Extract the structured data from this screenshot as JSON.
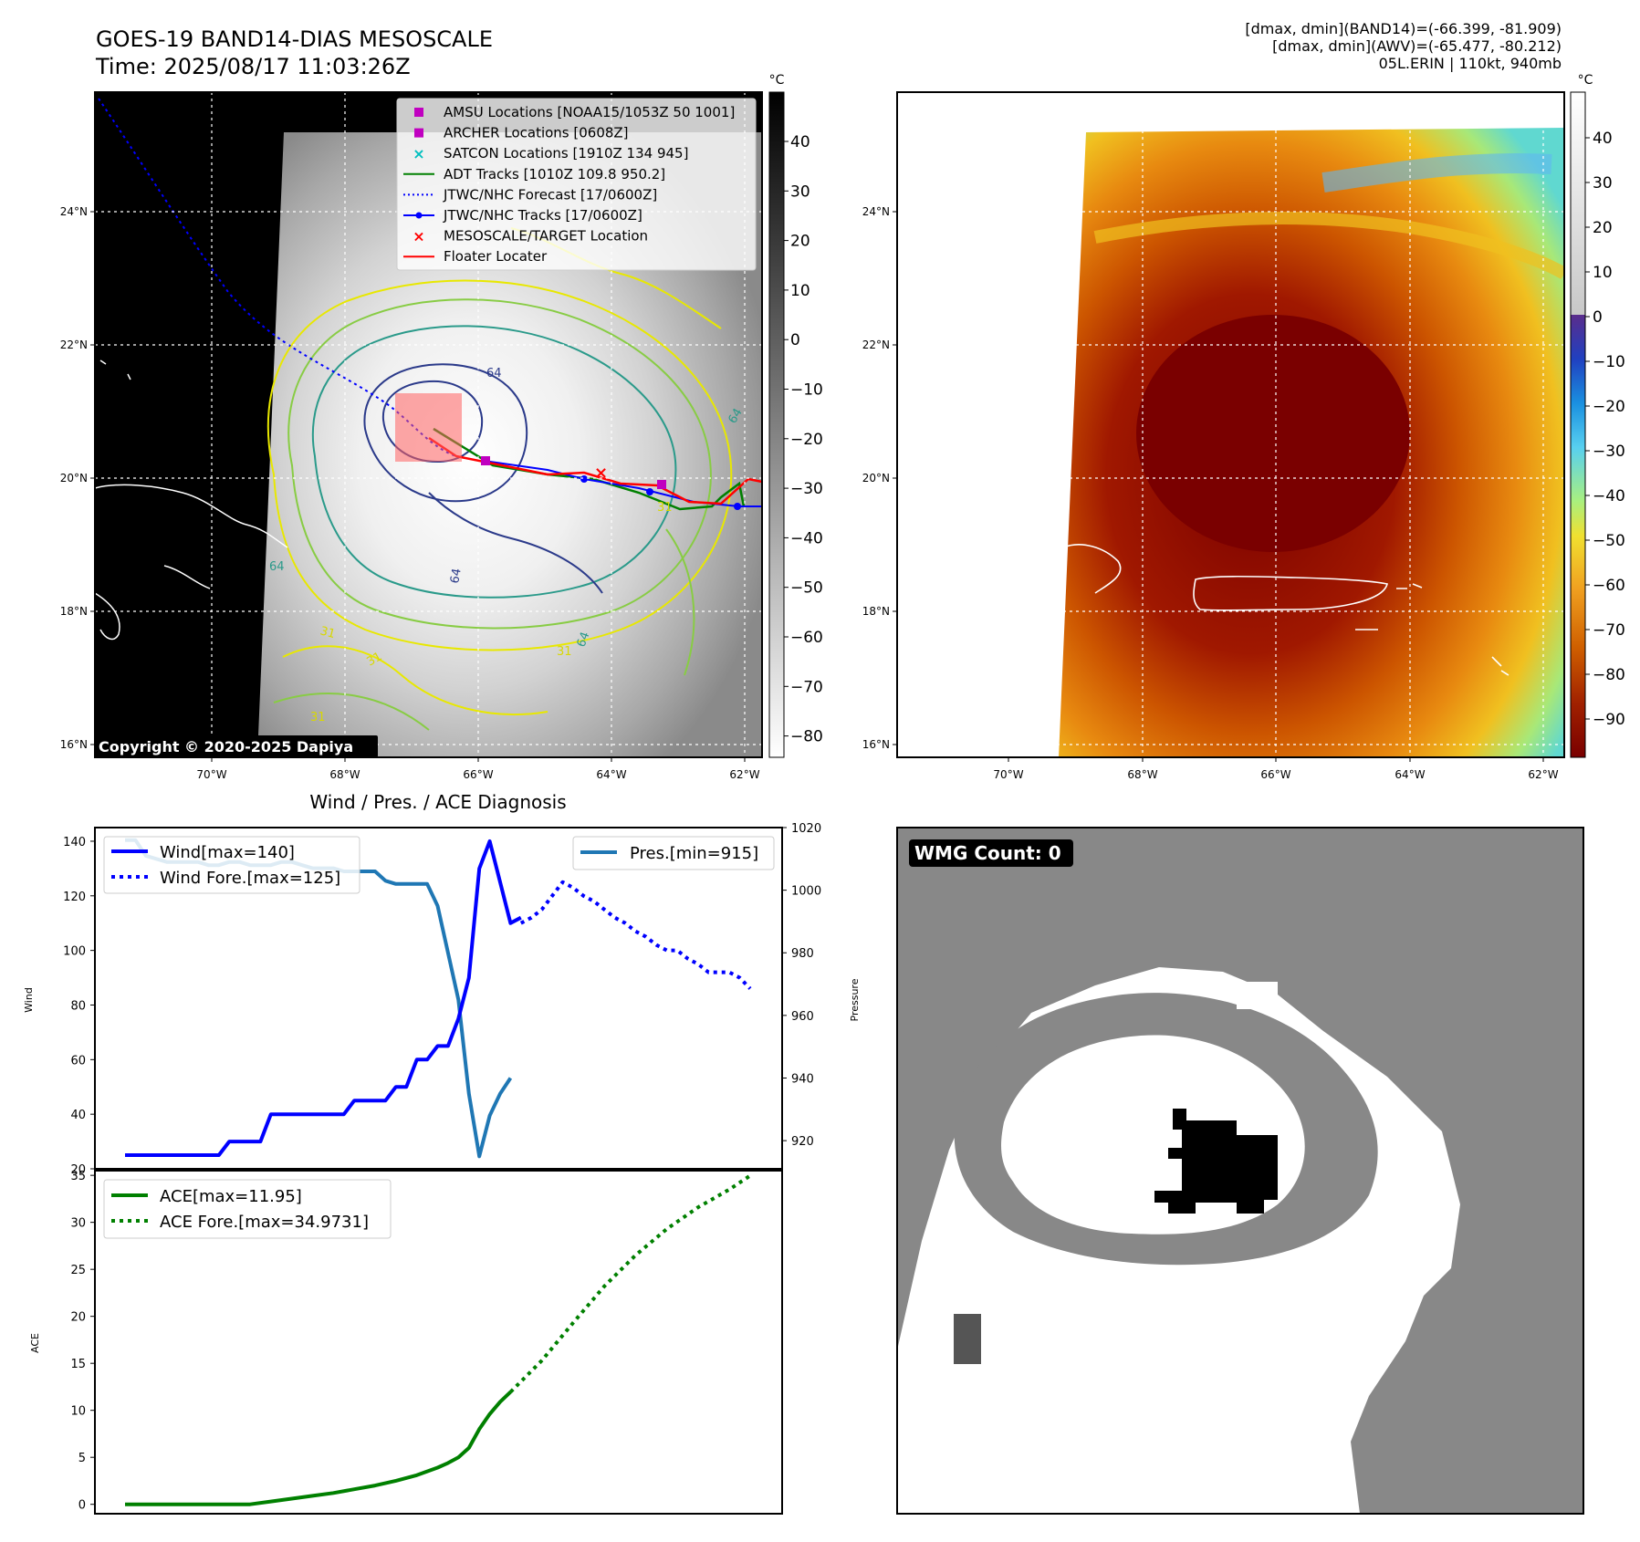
{
  "header": {
    "title_line1": "GOES-19 BAND14-DIAS MESOSCALE",
    "title_line2": "Time: 2025/08/17 11:03:26Z",
    "diag_line1": "[dmax, dmin](BAND14)=(-66.399, -81.909)",
    "diag_line2": "[dmax, dmin](AWV)=(-65.477, -80.212)",
    "diag_line3": "05L.ERIN | 110kt, 940mb"
  },
  "map_panels": {
    "lon_ticks": [
      "70°W",
      "68°W",
      "66°W",
      "64°W",
      "62°W"
    ],
    "lat_ticks": [
      "24°N",
      "22°N",
      "20°N",
      "18°N",
      "16°N"
    ],
    "copyright": "Copyright © 2020-2025 Dapiya",
    "legend": [
      {
        "label": "AMSU Locations [NOAA15/1053Z 50 1001]",
        "marker": "square",
        "color": "#c000c0"
      },
      {
        "label": "ARCHER Locations [0608Z]",
        "marker": "square",
        "color": "#c000c0"
      },
      {
        "label": "SATCON Locations [1910Z 134 945]",
        "marker": "x",
        "color": "#00bfbf"
      },
      {
        "label": "ADT Tracks [1010Z 109.8 950.2]",
        "marker": "line",
        "color": "#008000"
      },
      {
        "label": "JTWC/NHC Forecast [17/0600Z]",
        "marker": "dotted",
        "color": "#0000ff"
      },
      {
        "label": "JTWC/NHC Tracks [17/0600Z]",
        "marker": "line-dot",
        "color": "#0000ff"
      },
      {
        "label": "MESOSCALE/TARGET Location",
        "marker": "x",
        "color": "#ff0000"
      },
      {
        "label": "Floater Locater",
        "marker": "line",
        "color": "#ff0000"
      }
    ],
    "contour_labels": [
      "64",
      "64",
      "64",
      "64",
      "64",
      "31",
      "31",
      "31",
      "31",
      "31"
    ],
    "colorbar_unit": "°C",
    "gray_colorbar_ticks": [
      "40",
      "30",
      "20",
      "10",
      "0",
      "−10",
      "−20",
      "−30",
      "−40",
      "−50",
      "−60",
      "−70",
      "−80"
    ],
    "color_colorbar_ticks": [
      "40",
      "30",
      "20",
      "10",
      "0",
      "−10",
      "−20",
      "−30",
      "−40",
      "−50",
      "−60",
      "−70",
      "−80",
      "−90"
    ]
  },
  "chart_data": [
    {
      "type": "line",
      "title": "Wind / Pres. / ACE Diagnosis",
      "ylabel": "Wind",
      "ylim": [
        20,
        145
      ],
      "yticks": [
        "20",
        "40",
        "60",
        "80",
        "100",
        "120",
        "140"
      ],
      "series": [
        {
          "name": "Wind[max=140]",
          "color": "#0000ff",
          "style": "solid",
          "x": [
            0,
            9,
            10,
            13,
            14,
            21,
            22,
            25,
            26,
            27,
            28,
            29,
            30,
            31,
            32,
            33,
            34,
            35,
            36,
            37,
            38
          ],
          "values": [
            25,
            25,
            30,
            30,
            40,
            40,
            45,
            45,
            50,
            50,
            60,
            60,
            65,
            65,
            75,
            90,
            130,
            140,
            125,
            110,
            112
          ]
        },
        {
          "name": "Wind Fore.[max=125]",
          "color": "#0000ff",
          "style": "dotted",
          "x": [
            38,
            39,
            40,
            41,
            42,
            43,
            44,
            45,
            46,
            47,
            48,
            49,
            50,
            51,
            52,
            53,
            54,
            55,
            56,
            57,
            58,
            59,
            60
          ],
          "values": [
            110,
            112,
            115,
            120,
            125,
            123,
            120,
            118,
            115,
            112,
            110,
            107,
            105,
            102,
            100,
            100,
            97,
            95,
            92,
            92,
            92,
            90,
            86
          ]
        }
      ]
    },
    {
      "type": "line",
      "ylabel": "Pressure",
      "ylim": [
        911,
        1020
      ],
      "yticks": [
        "920",
        "940",
        "960",
        "980",
        "1000",
        "1020"
      ],
      "series": [
        {
          "name": "Pres.[min=915]",
          "color": "#1f77b4",
          "style": "solid",
          "x": [
            0,
            1,
            2,
            3,
            4,
            5,
            6,
            7,
            8,
            9,
            10,
            11,
            12,
            13,
            14,
            15,
            16,
            17,
            18,
            19,
            20,
            21,
            22,
            23,
            24,
            25,
            26,
            27,
            28,
            29,
            30,
            31,
            32,
            33,
            34,
            35,
            36,
            37
          ],
          "values": [
            1016,
            1016,
            1011,
            1010,
            1009,
            1009,
            1009,
            1009,
            1008,
            1008,
            1009,
            1009,
            1008,
            1008,
            1008,
            1009,
            1009,
            1008,
            1007,
            1007,
            1007,
            1006,
            1006,
            1006,
            1006,
            1003,
            1002,
            1002,
            1002,
            1002,
            995,
            980,
            965,
            935,
            915,
            928,
            935,
            940
          ]
        }
      ]
    },
    {
      "type": "line",
      "ylabel": "ACE",
      "ylim": [
        -1,
        35.5
      ],
      "yticks": [
        "0",
        "5",
        "10",
        "15",
        "20",
        "25",
        "30",
        "35"
      ],
      "series": [
        {
          "name": "ACE[max=11.95]",
          "color": "#008000",
          "style": "solid",
          "x": [
            0,
            3,
            6,
            9,
            12,
            14,
            16,
            18,
            20,
            22,
            24,
            26,
            28,
            30,
            31,
            32,
            33,
            34,
            35,
            36,
            37
          ],
          "values": [
            0,
            0,
            0,
            0,
            0,
            0.3,
            0.6,
            0.9,
            1.2,
            1.6,
            2.0,
            2.5,
            3.1,
            3.9,
            4.4,
            5.0,
            6.0,
            8.0,
            9.6,
            10.9,
            11.95
          ]
        },
        {
          "name": "ACE Fore.[max=34.9731]",
          "color": "#008000",
          "style": "dotted",
          "x": [
            37,
            40,
            43,
            46,
            49,
            52,
            55,
            58,
            60
          ],
          "values": [
            11.95,
            15.3,
            19.3,
            23.2,
            26.5,
            29.3,
            31.6,
            33.5,
            34.97
          ]
        }
      ]
    }
  ],
  "wmg_panel": {
    "label": "WMG Count: 0"
  }
}
